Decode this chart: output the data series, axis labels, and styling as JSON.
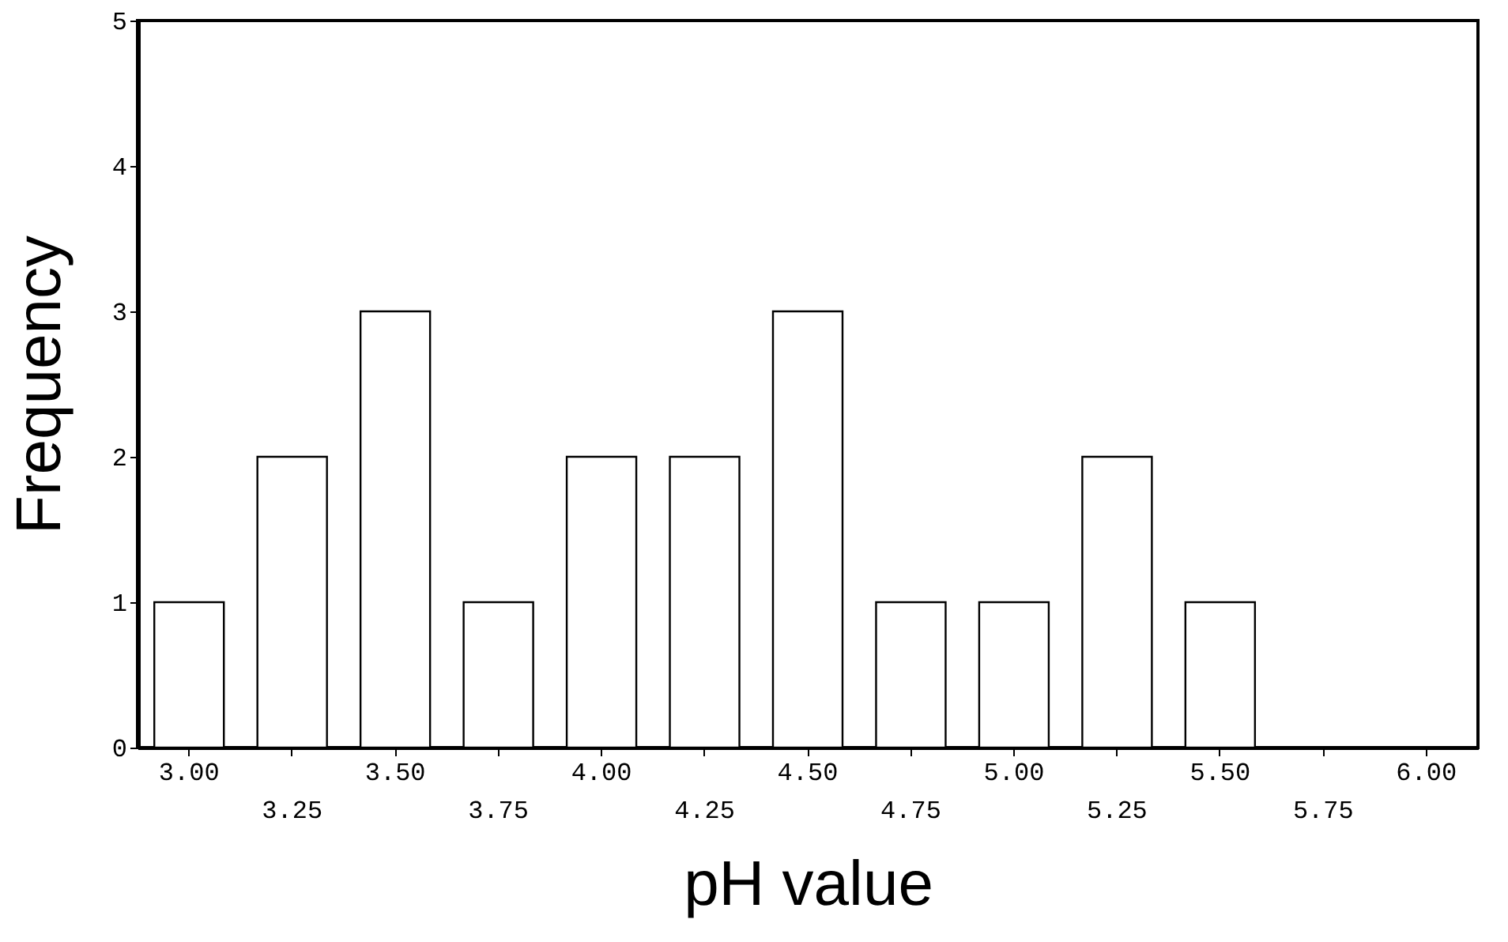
{
  "chart_data": {
    "type": "bar",
    "xlabel": "pH value",
    "ylabel": "Frequency",
    "categories": [
      "3.00",
      "3.25",
      "3.50",
      "3.75",
      "4.00",
      "4.25",
      "4.50",
      "4.75",
      "5.00",
      "5.25",
      "5.50",
      "5.75",
      "6.00"
    ],
    "values": [
      1,
      2,
      3,
      1,
      2,
      2,
      3,
      1,
      1,
      2,
      1,
      null,
      null
    ],
    "color": "#ffffff",
    "ylim": [
      0,
      5
    ],
    "yticks": [
      0,
      1,
      2,
      3,
      4,
      5
    ],
    "grid": false
  }
}
